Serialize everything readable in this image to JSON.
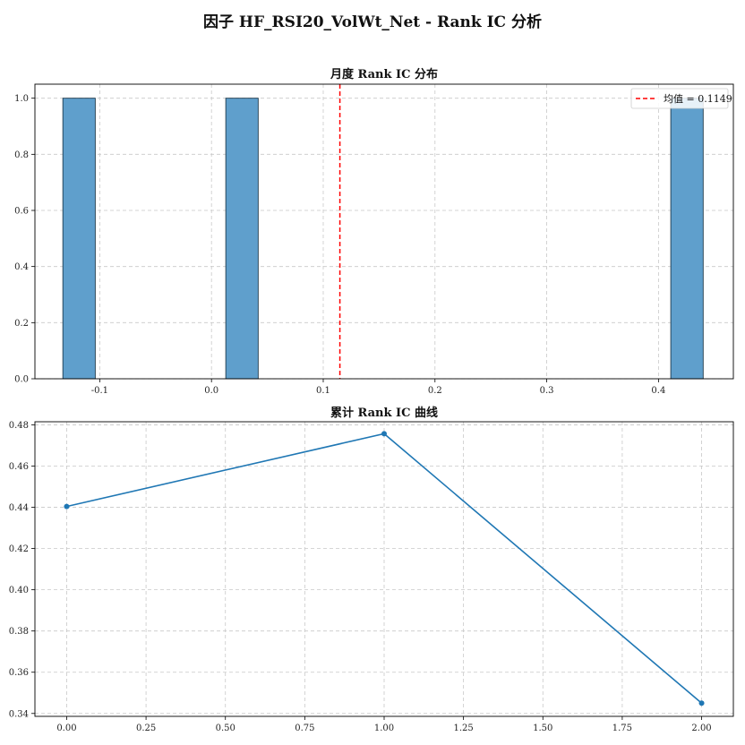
{
  "figure": {
    "suptitle": "因子 HF_RSI20_VolWt_Net - Rank IC 分析"
  },
  "colors": {
    "bar": "#5f9fcc",
    "bar_edge": "#1f3b4d",
    "mean_line": "#ff0000",
    "line": "#1f77b4"
  },
  "chart_data": [
    {
      "type": "bar",
      "title": "月度 Rank IC 分布",
      "bins": [
        {
          "x0": -0.133,
          "x1": -0.104,
          "count": 1
        },
        {
          "x0": 0.0128,
          "x1": 0.0418,
          "count": 1
        },
        {
          "x0": 0.411,
          "x1": 0.44,
          "count": 1
        }
      ],
      "mean": 0.1149,
      "mean_label": "均值 = 0.1149",
      "xlim": [
        -0.158,
        0.467
      ],
      "ylim": [
        0,
        1.05
      ],
      "xticks": [
        -0.1,
        0.0,
        0.1,
        0.2,
        0.3,
        0.4
      ],
      "xtick_labels": [
        "-0.1",
        "0.0",
        "0.1",
        "0.2",
        "0.3",
        "0.4"
      ],
      "yticks": [
        0,
        0.2,
        0.4,
        0.6,
        0.8,
        1.0
      ],
      "ytick_labels": [
        "0.0",
        "0.2",
        "0.4",
        "0.6",
        "0.8",
        "1.0"
      ],
      "grid": true,
      "legend": "top-right"
    },
    {
      "type": "line",
      "title": "累计 Rank IC 曲线",
      "x": [
        0,
        1,
        2
      ],
      "y": [
        0.4404,
        0.4757,
        0.345
      ],
      "xlim": [
        -0.1,
        2.1
      ],
      "ylim": [
        0.3386,
        0.4815
      ],
      "xticks": [
        0,
        0.25,
        0.5,
        0.75,
        1.0,
        1.25,
        1.5,
        1.75,
        2.0
      ],
      "xtick_labels": [
        "0.00",
        "0.25",
        "0.50",
        "0.75",
        "1.00",
        "1.25",
        "1.50",
        "1.75",
        "2.00"
      ],
      "yticks": [
        0.34,
        0.36,
        0.38,
        0.4,
        0.42,
        0.44,
        0.46,
        0.48
      ],
      "ytick_labels": [
        "0.34",
        "0.36",
        "0.38",
        "0.40",
        "0.42",
        "0.44",
        "0.46",
        "0.48"
      ],
      "grid": true,
      "markers": true
    }
  ]
}
